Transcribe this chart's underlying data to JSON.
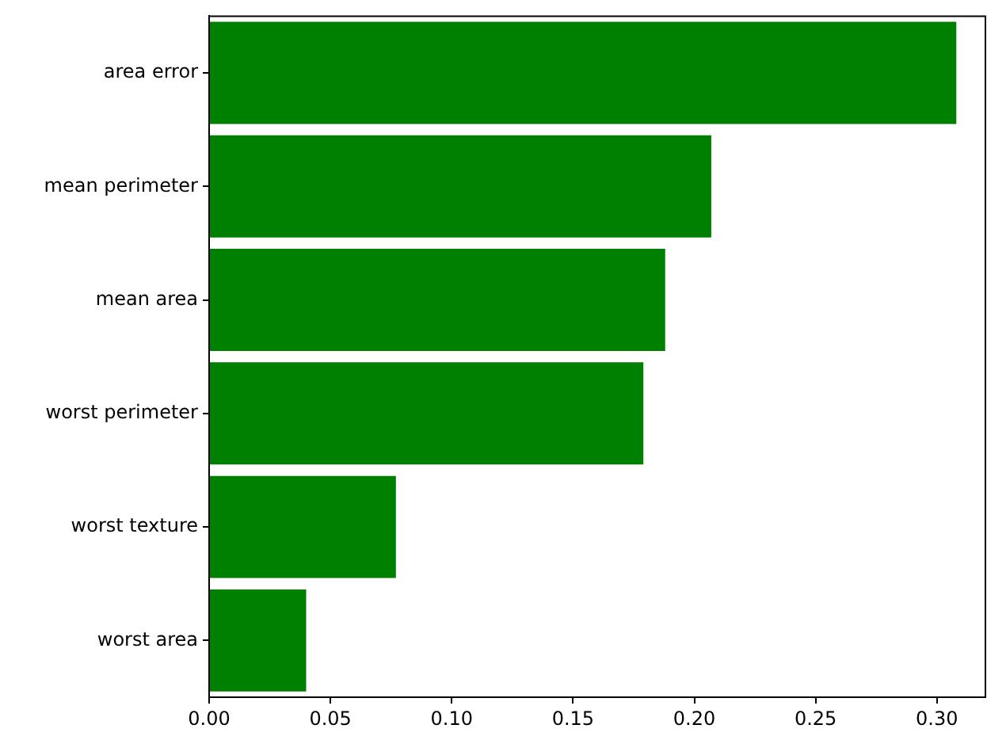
{
  "chart_data": {
    "type": "bar",
    "orientation": "horizontal",
    "categories": [
      "area error",
      "mean perimeter",
      "mean area",
      "worst perimeter",
      "worst texture",
      "worst area"
    ],
    "values": [
      0.308,
      0.207,
      0.188,
      0.179,
      0.077,
      0.04
    ],
    "color": "#008000",
    "xlim": [
      0,
      0.32
    ],
    "xticks": [
      {
        "value": 0,
        "label": "0.00"
      },
      {
        "value": 0.05,
        "label": "0.05"
      },
      {
        "value": 0.1,
        "label": "0.10"
      },
      {
        "value": 0.15,
        "label": "0.15"
      },
      {
        "value": 0.2,
        "label": "0.20"
      },
      {
        "value": 0.25,
        "label": "0.25"
      },
      {
        "value": 0.3,
        "label": "0.30"
      }
    ],
    "grid": false,
    "legend": false
  }
}
